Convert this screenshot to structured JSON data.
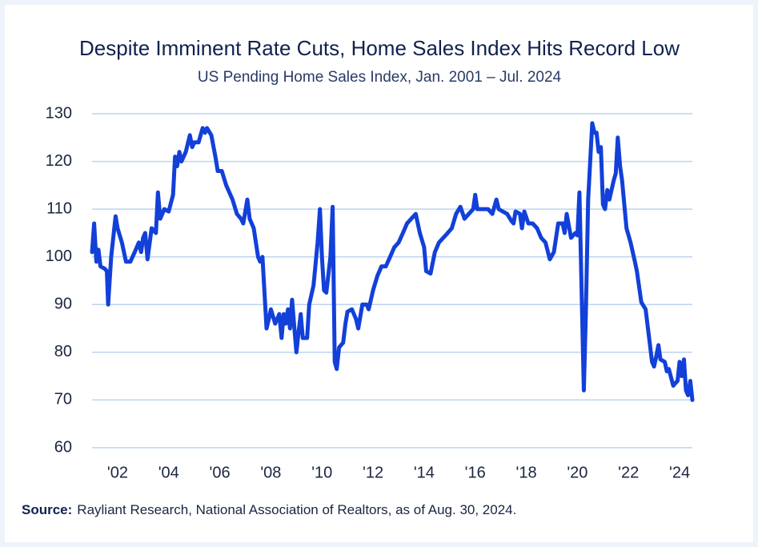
{
  "chart_data": {
    "type": "line",
    "title": "Despite Imminent Rate Cuts, Home Sales Index Hits Record Low",
    "subtitle": "US Pending Home Sales Index, Jan. 2001 – Jul. 2024",
    "source_label": "Source:",
    "source": "Rayliant Research, National Association of Realtors, as of Aug. 30, 2024.",
    "color": "#1240d8",
    "grid": true,
    "xlim": [
      2001,
      2024.5
    ],
    "xticks": [
      {
        "value": 2002,
        "label": "'02"
      },
      {
        "value": 2004,
        "label": "'04"
      },
      {
        "value": 2006,
        "label": "'06"
      },
      {
        "value": 2008,
        "label": "'08"
      },
      {
        "value": 2010,
        "label": "'10"
      },
      {
        "value": 2012,
        "label": "'12"
      },
      {
        "value": 2014,
        "label": "'14"
      },
      {
        "value": 2016,
        "label": "'16"
      },
      {
        "value": 2018,
        "label": "'18"
      },
      {
        "value": 2020,
        "label": "'20"
      },
      {
        "value": 2022,
        "label": "'22"
      },
      {
        "value": 2024,
        "label": "'24"
      }
    ],
    "ylim": [
      60,
      130
    ],
    "yticks": [
      60,
      70,
      80,
      90,
      100,
      110,
      120,
      130
    ],
    "x": [
      2001.0,
      2001.08,
      2001.17,
      2001.25,
      2001.33,
      2001.5,
      2001.58,
      2001.63,
      2001.75,
      2001.92,
      2002.0,
      2002.17,
      2002.33,
      2002.5,
      2002.67,
      2002.83,
      2002.92,
      2003.0,
      2003.08,
      2003.17,
      2003.33,
      2003.5,
      2003.58,
      2003.67,
      2003.83,
      2004.0,
      2004.17,
      2004.25,
      2004.33,
      2004.42,
      2004.5,
      2004.67,
      2004.83,
      2004.92,
      2005.0,
      2005.17,
      2005.33,
      2005.42,
      2005.5,
      2005.67,
      2005.83,
      2005.92,
      2006.08,
      2006.25,
      2006.5,
      2006.67,
      2006.83,
      2006.92,
      2007.08,
      2007.17,
      2007.33,
      2007.5,
      2007.58,
      2007.67,
      2007.83,
      2007.92,
      2008.0,
      2008.17,
      2008.33,
      2008.42,
      2008.5,
      2008.58,
      2008.67,
      2008.75,
      2008.83,
      2008.92,
      2009.0,
      2009.08,
      2009.17,
      2009.25,
      2009.42,
      2009.5,
      2009.67,
      2009.83,
      2009.92,
      2010.0,
      2010.08,
      2010.17,
      2010.33,
      2010.42,
      2010.5,
      2010.58,
      2010.67,
      2010.83,
      2010.92,
      2011.0,
      2011.17,
      2011.33,
      2011.42,
      2011.58,
      2011.75,
      2011.83,
      2012.0,
      2012.17,
      2012.33,
      2012.5,
      2012.67,
      2012.83,
      2013.0,
      2013.17,
      2013.33,
      2013.5,
      2013.67,
      2013.83,
      2014.0,
      2014.08,
      2014.25,
      2014.42,
      2014.58,
      2014.75,
      2014.92,
      2015.08,
      2015.25,
      2015.42,
      2015.58,
      2015.75,
      2015.92,
      2016.0,
      2016.08,
      2016.25,
      2016.5,
      2016.67,
      2016.83,
      2016.92,
      2017.08,
      2017.25,
      2017.42,
      2017.5,
      2017.58,
      2017.75,
      2017.83,
      2017.92,
      2018.08,
      2018.25,
      2018.42,
      2018.58,
      2018.75,
      2018.92,
      2019.08,
      2019.25,
      2019.42,
      2019.5,
      2019.58,
      2019.75,
      2019.92,
      2020.0,
      2020.08,
      2020.25,
      2020.33,
      2020.42,
      2020.58,
      2020.67,
      2020.75,
      2020.83,
      2020.92,
      2021.0,
      2021.08,
      2021.17,
      2021.25,
      2021.42,
      2021.5,
      2021.58,
      2021.67,
      2021.75,
      2021.92,
      2022.08,
      2022.25,
      2022.33,
      2022.5,
      2022.67,
      2022.83,
      2022.92,
      2023.0,
      2023.08,
      2023.17,
      2023.25,
      2023.42,
      2023.5,
      2023.58,
      2023.75,
      2023.83,
      2023.92,
      2024.0,
      2024.08,
      2024.17,
      2024.25,
      2024.33,
      2024.42,
      2024.5
    ],
    "values": [
      101,
      107,
      99,
      101.5,
      98,
      97.5,
      97,
      90,
      100,
      108.5,
      106,
      103,
      99,
      99,
      101,
      103,
      101,
      104,
      105,
      99.5,
      106,
      105,
      113.5,
      108,
      110,
      109.5,
      113,
      121,
      119,
      122,
      120,
      122,
      125.5,
      123,
      124,
      124,
      127,
      126,
      127,
      125.5,
      121,
      118,
      118,
      115,
      112,
      109,
      108,
      107,
      112,
      108,
      106,
      100,
      99,
      100,
      85,
      87,
      89,
      86,
      88,
      83,
      88,
      86,
      89,
      85,
      91,
      85,
      80,
      84,
      88,
      83,
      83,
      90,
      94,
      103,
      110,
      100,
      93,
      92.5,
      100,
      110.5,
      78,
      76.5,
      81,
      82,
      86,
      88.5,
      89,
      87,
      85,
      90,
      90,
      89,
      93,
      96,
      98,
      98,
      100,
      102,
      103,
      105,
      107,
      108,
      109,
      105,
      102,
      97,
      96.5,
      101,
      103,
      104,
      105,
      106,
      109,
      110.5,
      108,
      109,
      110,
      113,
      110,
      110,
      110,
      109,
      112,
      110,
      109.5,
      109,
      107.5,
      107,
      109.5,
      109,
      106,
      109.5,
      107,
      107,
      106,
      104,
      103,
      99.5,
      101,
      107,
      107,
      105,
      109,
      104,
      105,
      104.5,
      113.5,
      72,
      88,
      112,
      128,
      126,
      126,
      122,
      123,
      111,
      110,
      114,
      112,
      116,
      117.5,
      125,
      119,
      116,
      106,
      103,
      99,
      97,
      90.5,
      89,
      82,
      78,
      77,
      79,
      81.5,
      78.5,
      78,
      76,
      76.5,
      73,
      73.5,
      74,
      78,
      75,
      78.5,
      72,
      71,
      74,
      70
    ]
  }
}
